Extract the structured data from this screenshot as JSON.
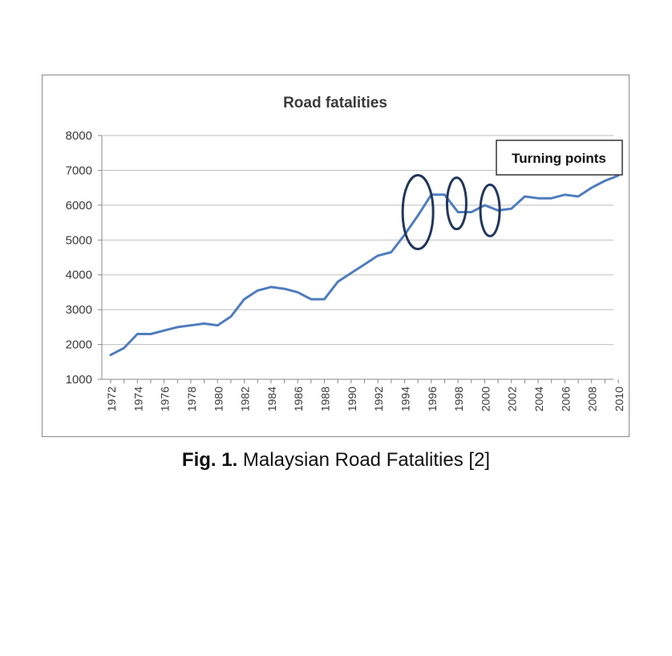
{
  "chart_data": {
    "type": "line",
    "title": "Road fatalities",
    "xlabel": "",
    "ylabel": "",
    "ylim": [
      1000,
      8000
    ],
    "yticks": [
      1000,
      2000,
      3000,
      4000,
      5000,
      6000,
      7000,
      8000
    ],
    "xticks": [
      1972,
      1974,
      1976,
      1978,
      1980,
      1982,
      1984,
      1986,
      1988,
      1990,
      1992,
      1994,
      1996,
      1998,
      2000,
      2002,
      2004,
      2006,
      2008,
      2010
    ],
    "grid": true,
    "series": [
      {
        "name": "",
        "color": "#4f7dbd",
        "x": [
          1972,
          1973,
          1974,
          1975,
          1976,
          1977,
          1978,
          1979,
          1980,
          1981,
          1982,
          1983,
          1984,
          1985,
          1986,
          1987,
          1988,
          1989,
          1990,
          1991,
          1992,
          1993,
          1994,
          1995,
          1996,
          1997,
          1998,
          1999,
          2000,
          2001,
          2002,
          2003,
          2004,
          2005,
          2006,
          2007,
          2008,
          2009,
          2010
        ],
        "values": [
          1700,
          1900,
          2300,
          2300,
          2400,
          2500,
          2550,
          2600,
          2550,
          2800,
          3300,
          3550,
          3650,
          3600,
          3500,
          3300,
          3300,
          3800,
          4050,
          4300,
          4550,
          4650,
          5150,
          5700,
          6300,
          6300,
          5800,
          5800,
          6000,
          5850,
          5900,
          6250,
          6200,
          6200,
          6300,
          6250,
          6500,
          6700,
          6850
        ]
      }
    ],
    "annotations": [
      {
        "text": "Turning points",
        "style": "boxed callout"
      },
      {
        "text": "",
        "shape": "ellipse",
        "x_center": 1995,
        "y_center": 5800
      },
      {
        "text": "",
        "shape": "ellipse",
        "x_center": 1997.9,
        "y_center": 6050
      },
      {
        "text": "",
        "shape": "ellipse",
        "x_center": 2000.4,
        "y_center": 5850
      }
    ]
  },
  "caption": {
    "label": "Fig. 1.",
    "text": " Malaysian Road Fatalities [2]"
  }
}
